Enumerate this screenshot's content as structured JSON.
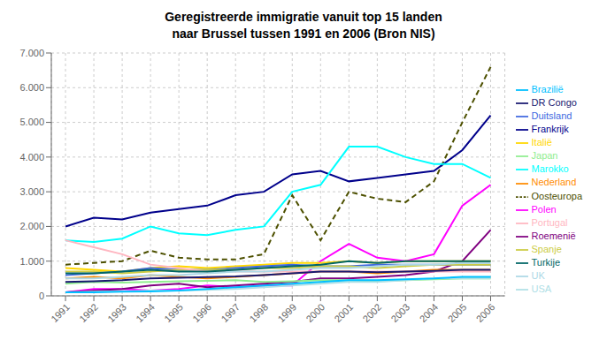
{
  "chart_data": {
    "type": "line",
    "title": "Geregistreerde immigratie vanuit top 15 landen\nnaar Brussel tussen 1991 en 2006 (Bron NIS)",
    "x": [
      1991,
      1992,
      1993,
      1994,
      1995,
      1996,
      1997,
      1998,
      1999,
      2000,
      2001,
      2002,
      2003,
      2004,
      2005,
      2006
    ],
    "xlim": [
      1990.5,
      2006.5
    ],
    "xticks": [
      1991,
      1992,
      1993,
      1994,
      1995,
      1996,
      1997,
      1998,
      1999,
      2000,
      2001,
      2002,
      2003,
      2004,
      2005,
      2006
    ],
    "ylim": [
      0,
      7000
    ],
    "yticks": [
      0,
      {
        "value": 1000,
        "label": "1.000"
      },
      {
        "value": 2000,
        "label": "2.000"
      },
      {
        "value": 3000,
        "label": "3.000"
      },
      {
        "value": 4000,
        "label": "4.000"
      },
      {
        "value": 5000,
        "label": "5.000"
      },
      {
        "value": 6000,
        "label": "6.000"
      },
      {
        "value": 7000,
        "label": "7.000"
      }
    ],
    "grid": true,
    "legend": "right",
    "series": [
      {
        "name": "Oosteuropa",
        "color": "#4d5000",
        "line_style": "dashed",
        "values": [
          900,
          950,
          1000,
          1300,
          1100,
          1050,
          1050,
          1200,
          2900,
          1600,
          3000,
          2800,
          2700,
          3300,
          5000,
          6600
        ]
      },
      {
        "name": "Frankrijk",
        "color": "#00008B",
        "line_style": "solid",
        "values": [
          2000,
          2250,
          2200,
          2400,
          2500,
          2600,
          2900,
          3000,
          3500,
          3600,
          3300,
          3400,
          3500,
          3600,
          4200,
          5200
        ]
      },
      {
        "name": "Marokko",
        "color": "#00FFFF",
        "line_style": "solid",
        "values": [
          1600,
          1550,
          1650,
          2000,
          1800,
          1750,
          1900,
          2000,
          3000,
          3200,
          4300,
          4300,
          4000,
          3800,
          3800,
          3400
        ]
      },
      {
        "name": "Polen",
        "color": "#FF00FF",
        "line_style": "solid",
        "values": [
          100,
          200,
          200,
          150,
          200,
          300,
          250,
          300,
          300,
          1000,
          1500,
          1100,
          1000,
          1200,
          2600,
          3200
        ]
      },
      {
        "name": "Roemenië",
        "color": "#800080",
        "line_style": "solid",
        "values": [
          100,
          150,
          200,
          300,
          350,
          250,
          300,
          350,
          400,
          500,
          500,
          550,
          600,
          700,
          1000,
          1900
        ]
      },
      {
        "name": "Italië",
        "color": "#FFD700",
        "line_style": "solid",
        "values": [
          800,
          750,
          700,
          800,
          850,
          800,
          850,
          900,
          950,
          950,
          1000,
          950,
          1000,
          1000,
          1000,
          1000
        ]
      },
      {
        "name": "Duitsland",
        "color": "#4169E1",
        "line_style": "solid",
        "values": [
          600,
          650,
          700,
          800,
          750,
          750,
          800,
          850,
          900,
          850,
          850,
          900,
          900,
          900,
          900,
          900
        ]
      },
      {
        "name": "Nederland",
        "color": "#FF8C00",
        "line_style": "solid",
        "values": [
          500,
          550,
          500,
          600,
          550,
          500,
          550,
          600,
          650,
          700,
          700,
          650,
          700,
          750,
          750,
          750
        ]
      },
      {
        "name": "Spanje",
        "color": "#CCCC44",
        "line_style": "solid",
        "values": [
          700,
          700,
          650,
          700,
          750,
          750,
          750,
          800,
          800,
          850,
          850,
          800,
          850,
          900,
          900,
          900
        ]
      },
      {
        "name": "Portugal",
        "color": "#FFB6C1",
        "line_style": "solid",
        "values": [
          1600,
          1400,
          1200,
          900,
          800,
          700,
          700,
          700,
          700,
          700,
          700,
          700,
          700,
          700,
          700,
          700
        ]
      },
      {
        "name": "UK",
        "color": "#ADD8E6",
        "line_style": "solid",
        "values": [
          500,
          500,
          550,
          600,
          600,
          650,
          700,
          700,
          750,
          800,
          800,
          850,
          900,
          900,
          950,
          950
        ]
      },
      {
        "name": "Japan",
        "color": "#90EE90",
        "line_style": "solid",
        "values": [
          350,
          400,
          380,
          400,
          420,
          430,
          450,
          400,
          420,
          450,
          450,
          420,
          450,
          480,
          500,
          500
        ]
      },
      {
        "name": "USA",
        "color": "#B0E0E6",
        "line_style": "solid",
        "values": [
          100,
          120,
          130,
          150,
          150,
          170,
          200,
          250,
          300,
          350,
          400,
          400,
          450,
          500,
          500,
          500
        ]
      },
      {
        "name": "Turkije",
        "color": "#006666",
        "line_style": "solid",
        "values": [
          650,
          650,
          700,
          750,
          700,
          700,
          750,
          800,
          850,
          900,
          1000,
          950,
          1000,
          1000,
          1000,
          1000
        ]
      },
      {
        "name": "Brazilië",
        "color": "#00BFFF",
        "line_style": "solid",
        "values": [
          100,
          100,
          120,
          130,
          150,
          200,
          250,
          300,
          350,
          400,
          450,
          450,
          480,
          500,
          550,
          550
        ]
      },
      {
        "name": "DR Congo",
        "color": "#191970",
        "line_style": "solid",
        "values": [
          400,
          420,
          450,
          500,
          520,
          540,
          560,
          600,
          650,
          700,
          700,
          680,
          700,
          720,
          750,
          750
        ]
      }
    ]
  }
}
